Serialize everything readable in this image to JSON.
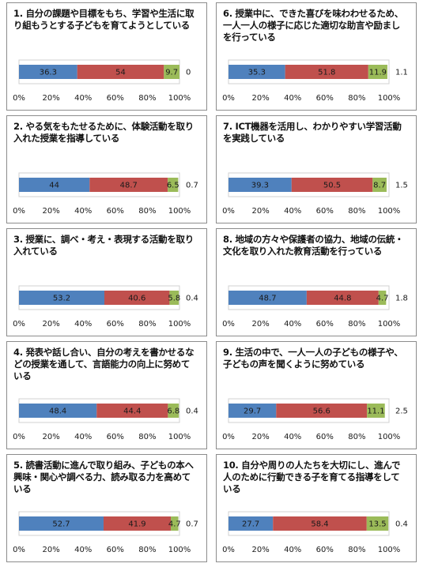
{
  "colors": {
    "series1": "#4f81bd",
    "series2": "#c0504d",
    "series3": "#9bbb59",
    "frame": "#8c8c8c",
    "grid": "#d9d9d9"
  },
  "chart_data": [
    {
      "type": "bar",
      "orientation": "horizontal",
      "stacked": true,
      "title": "1. 自分の課題や目標をもち、学習や生活に取り組もうとする子どもを育てようとしている",
      "values": [
        36.3,
        54,
        9.7
      ],
      "other": "0",
      "x_ticks": [
        "0%",
        "20%",
        "40%",
        "60%",
        "80%",
        "100%"
      ],
      "xlim": [
        0,
        100
      ]
    },
    {
      "type": "bar",
      "orientation": "horizontal",
      "stacked": true,
      "title": "2. やる気をもたせるために、体験活動を取り入れた授業を指導している",
      "values": [
        44,
        48.7,
        6.5
      ],
      "other": "0.7",
      "x_ticks": [
        "0%",
        "20%",
        "40%",
        "60%",
        "80%",
        "100%"
      ],
      "xlim": [
        0,
        100
      ]
    },
    {
      "type": "bar",
      "orientation": "horizontal",
      "stacked": true,
      "title": "3. 授業に、調べ・考え・表現する活動を取り入れている",
      "values": [
        53.2,
        40.6,
        5.8
      ],
      "other": "0.4",
      "x_ticks": [
        "0%",
        "20%",
        "40%",
        "60%",
        "80%",
        "100%"
      ],
      "xlim": [
        0,
        100
      ]
    },
    {
      "type": "bar",
      "orientation": "horizontal",
      "stacked": true,
      "title": "4. 発表や話し合い、自分の考えを書かせるなどの授業を通して、言語能力の向上に努めている",
      "values": [
        48.4,
        44.4,
        6.8
      ],
      "other": "0.4",
      "x_ticks": [
        "0%",
        "20%",
        "40%",
        "60%",
        "80%",
        "100%"
      ],
      "xlim": [
        0,
        100
      ]
    },
    {
      "type": "bar",
      "orientation": "horizontal",
      "stacked": true,
      "title": "5. 読書活動に進んで取り組み、子どもの本へ興味・関心や調べる力、読み取る力を高めている",
      "values": [
        52.7,
        41.9,
        4.7
      ],
      "other": "0.7",
      "x_ticks": [
        "0%",
        "20%",
        "40%",
        "60%",
        "80%",
        "100%"
      ],
      "xlim": [
        0,
        100
      ]
    },
    {
      "type": "bar",
      "orientation": "horizontal",
      "stacked": true,
      "title": "6. 授業中に、できた喜びを味わわせるため、一人一人の様子に応じた適切な助言や励ましを行っている",
      "values": [
        35.3,
        51.8,
        11.9
      ],
      "other": "1.1",
      "x_ticks": [
        "0%",
        "20%",
        "40%",
        "60%",
        "80%",
        "100%"
      ],
      "xlim": [
        0,
        100
      ]
    },
    {
      "type": "bar",
      "orientation": "horizontal",
      "stacked": true,
      "title": "7. ICT機器を活用し、わかりやすい学習活動を実践している",
      "values": [
        39.3,
        50.5,
        8.7
      ],
      "other": "1.5",
      "x_ticks": [
        "0%",
        "20%",
        "40%",
        "60%",
        "80%",
        "100%"
      ],
      "xlim": [
        0,
        100
      ]
    },
    {
      "type": "bar",
      "orientation": "horizontal",
      "stacked": true,
      "title": "8. 地域の方々や保護者の協力、地域の伝統・文化を取り入れた教育活動を行っている",
      "values": [
        48.7,
        44.8,
        4.7
      ],
      "other": "1.8",
      "x_ticks": [
        "0%",
        "20%",
        "40%",
        "60%",
        "80%",
        "100%"
      ],
      "xlim": [
        0,
        100
      ]
    },
    {
      "type": "bar",
      "orientation": "horizontal",
      "stacked": true,
      "title": "9. 生活の中で、一人一人の子どもの様子や、子どもの声を聞くように努めている",
      "values": [
        29.7,
        56.6,
        11.1
      ],
      "other": "2.5",
      "x_ticks": [
        "0%",
        "20%",
        "40%",
        "60%",
        "80%",
        "100%"
      ],
      "xlim": [
        0,
        100
      ]
    },
    {
      "type": "bar",
      "orientation": "horizontal",
      "stacked": true,
      "title": "10. 自分や周りの人たちを大切にし、進んで人のために行動できる子を育てる指導をしている",
      "values": [
        27.7,
        58.4,
        13.5
      ],
      "other": "0.4",
      "x_ticks": [
        "0%",
        "20%",
        "40%",
        "60%",
        "80%",
        "100%"
      ],
      "xlim": [
        0,
        100
      ]
    }
  ]
}
